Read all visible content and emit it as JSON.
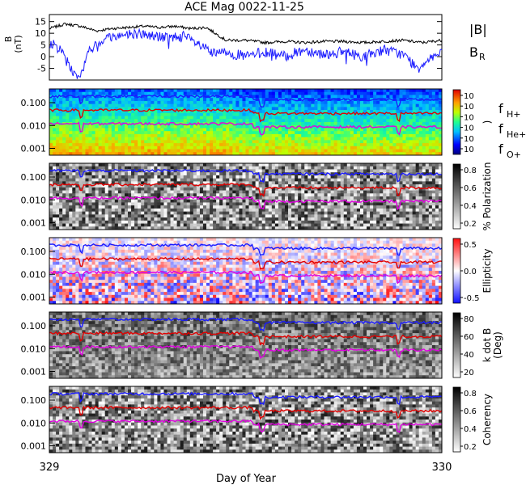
{
  "title": "ACE Mag 0022-11-25",
  "xlabel": "Day of Year",
  "x_ticks": [
    "329",
    "330"
  ],
  "colors": {
    "B_total": "#000000",
    "B_R": "#1a1aff",
    "f_H": "#1a1aff",
    "f_He": "#e00000",
    "f_O": "#e000e0",
    "ax": "#000000"
  },
  "chart_data": [
    {
      "type": "line",
      "panel": "magnetic field",
      "ylabel": "B",
      "yunit": "(nT)",
      "ylim": [
        -10,
        18
      ],
      "yticks": [
        "15",
        "10",
        "5",
        "0",
        "-5"
      ],
      "xlim": [
        329,
        330
      ],
      "legend": [
        "|B|",
        "B",
        "R"
      ],
      "series": [
        {
          "name": "|B|",
          "color": "#000000",
          "x": [
            329.0,
            329.04,
            329.08,
            329.12,
            329.16,
            329.2,
            329.24,
            329.28,
            329.32,
            329.36,
            329.4,
            329.45,
            329.5,
            329.55,
            329.6,
            329.65,
            329.7,
            329.75,
            329.8,
            329.85,
            329.9,
            329.95,
            330.0
          ],
          "values": [
            12,
            14,
            13,
            11,
            12,
            12.5,
            13,
            12.5,
            13,
            12,
            12.5,
            7,
            7,
            6,
            6.5,
            6,
            6.5,
            6.5,
            6,
            6.5,
            7,
            6,
            7
          ]
        },
        {
          "name": "B",
          "color": "#1a1aff",
          "x": [
            329.0,
            329.02,
            329.04,
            329.06,
            329.08,
            329.1,
            329.14,
            329.18,
            329.22,
            329.26,
            329.3,
            329.34,
            329.38,
            329.42,
            329.45,
            329.5,
            329.55,
            329.6,
            329.65,
            329.7,
            329.75,
            329.8,
            329.85,
            329.9,
            329.94,
            329.97,
            330.0
          ],
          "values": [
            6,
            4,
            1,
            -7,
            -8,
            2,
            8,
            9,
            10,
            9,
            8,
            9,
            5,
            1,
            2,
            0,
            2,
            0,
            3,
            1,
            2,
            0,
            3,
            1,
            -5,
            0,
            1
          ]
        }
      ]
    },
    {
      "type": "heatmap",
      "panel": "power",
      "ylim_log": [
        0.0005,
        0.4
      ],
      "yticks": [
        "0.100",
        "0.010",
        "0.001"
      ],
      "colorbar_ticks": [
        "10",
        "10",
        "10",
        "10",
        "10",
        "10"
      ],
      "colorbar_label": ")",
      "legend": [
        "f",
        "H+",
        "f",
        "He+",
        "f",
        "O+"
      ],
      "series": [
        {
          "name": "f",
          "sub": "H+",
          "level": 0.19
        },
        {
          "name": "f",
          "sub": "He+",
          "level": 0.047
        },
        {
          "name": "f",
          "sub": "O+",
          "level": 0.012
        }
      ]
    },
    {
      "type": "heatmap",
      "panel": "polarization",
      "yticks": [
        "0.100",
        "0.010",
        "0.001"
      ],
      "colorbar_ticks": [
        "0.8",
        "0.6",
        "0.4",
        "0.2"
      ],
      "colorbar_label": "% Polarization"
    },
    {
      "type": "heatmap",
      "panel": "ellipticity",
      "yticks": [
        "0.100",
        "0.010",
        "0.001"
      ],
      "colorbar_ticks": [
        "0.5",
        "0.0",
        "-0.5"
      ],
      "colorbar_label": "Ellipticity"
    },
    {
      "type": "heatmap",
      "panel": "k dot B",
      "yticks": [
        "0.100",
        "0.010",
        "0.001"
      ],
      "colorbar_ticks": [
        "80",
        "60",
        "40",
        "20"
      ],
      "colorbar_label": "k dot B",
      "colorbar_unit": "(Deg)"
    },
    {
      "type": "heatmap",
      "panel": "coherency",
      "yticks": [
        "0.100",
        "0.010",
        "0.001"
      ],
      "colorbar_ticks": [
        "0.8",
        "0.6",
        "0.4",
        "0.2"
      ],
      "colorbar_label": "Coherency"
    }
  ]
}
